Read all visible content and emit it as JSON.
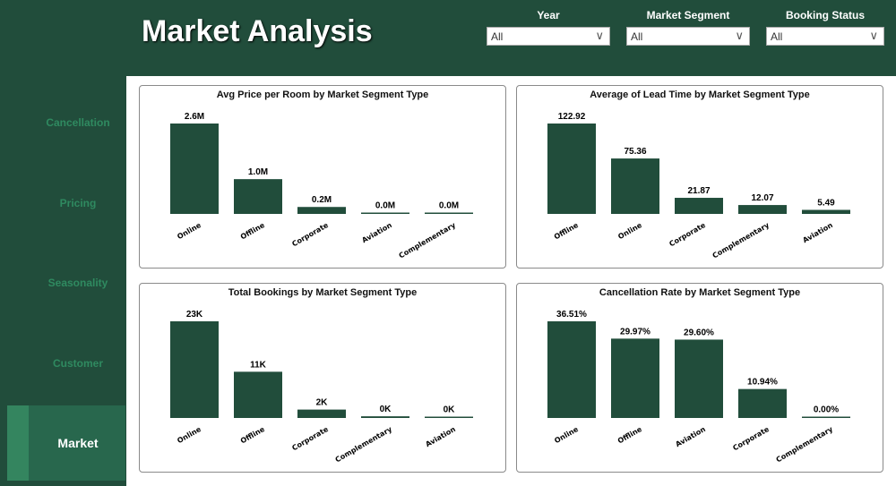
{
  "header": {
    "title": "Market Analysis"
  },
  "filters": [
    {
      "label": "Year",
      "value": "All"
    },
    {
      "label": "Market Segment",
      "value": "All"
    },
    {
      "label": "Booking Status",
      "value": "All"
    }
  ],
  "sidebar": {
    "items": [
      {
        "label": "Cancellation",
        "active": false
      },
      {
        "label": "Pricing",
        "active": false
      },
      {
        "label": "Seasonality",
        "active": false
      },
      {
        "label": "Customer",
        "active": false
      },
      {
        "label": "Market",
        "active": true
      }
    ]
  },
  "colors": {
    "bar": "#214d3b",
    "header": "#214d3b",
    "active": "#28674d"
  },
  "chart_data": [
    {
      "type": "bar",
      "title": "Avg Price per Room by Market Segment Type",
      "categories": [
        "Online",
        "Offline",
        "Corporate",
        "Aviation",
        "Complementary"
      ],
      "values": [
        2.6,
        1.0,
        0.2,
        0.02,
        0.01
      ],
      "labels": [
        "2.6M",
        "1.0M",
        "0.2M",
        "0.0M",
        "0.0M"
      ],
      "unit": "M"
    },
    {
      "type": "bar",
      "title": "Average of Lead Time by Market Segment Type",
      "categories": [
        "Offline",
        "Online",
        "Corporate",
        "Complementary",
        "Aviation"
      ],
      "values": [
        122.92,
        75.36,
        21.87,
        12.07,
        5.49
      ],
      "labels": [
        "122.92",
        "75.36",
        "21.87",
        "12.07",
        "5.49"
      ]
    },
    {
      "type": "bar",
      "title": "Total Bookings by Market Segment Type",
      "categories": [
        "Online",
        "Offline",
        "Corporate",
        "Complementary",
        "Aviation"
      ],
      "values": [
        23,
        11,
        2,
        0.4,
        0.1
      ],
      "labels": [
        "23K",
        "11K",
        "2K",
        "0K",
        "0K"
      ],
      "unit": "K"
    },
    {
      "type": "bar",
      "title": "Cancellation Rate by Market Segment Type",
      "categories": [
        "Online",
        "Offline",
        "Aviation",
        "Corporate",
        "Complementary"
      ],
      "values": [
        36.51,
        29.97,
        29.6,
        10.94,
        0.0
      ],
      "labels": [
        "36.51%",
        "29.97%",
        "29.60%",
        "10.94%",
        "0.00%"
      ]
    }
  ]
}
